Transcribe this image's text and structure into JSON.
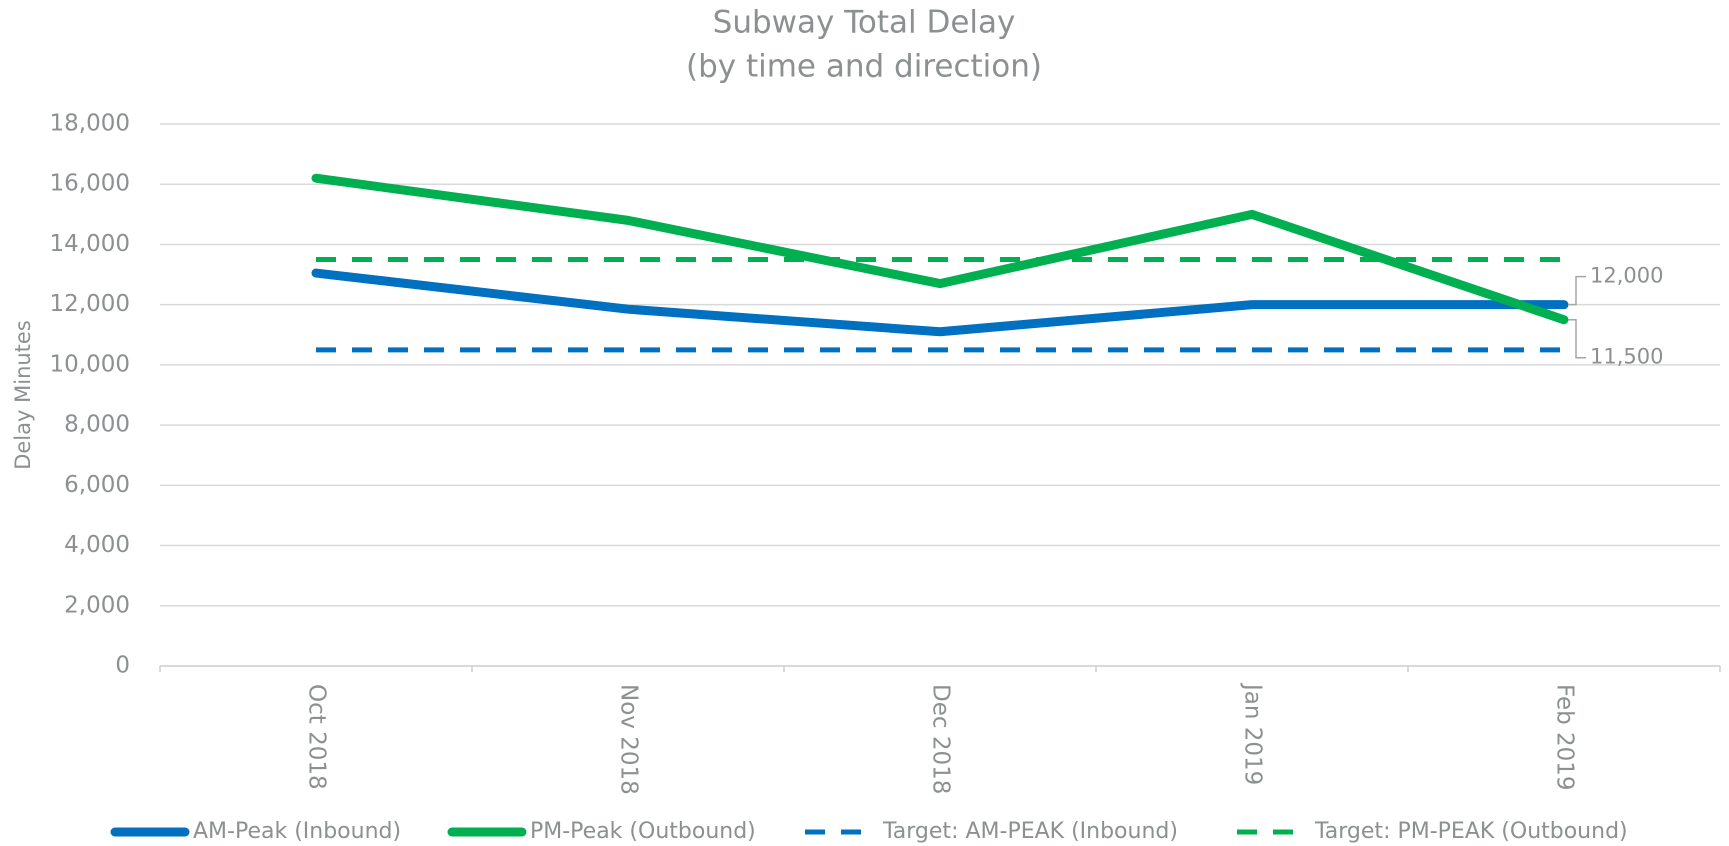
{
  "chart_data": {
    "type": "line",
    "title": "Subway Total Delay",
    "subtitle": "(by time and direction)",
    "y_label": "Delay Minutes",
    "categories": [
      "Oct 2018",
      "Nov 2018",
      "Dec 2018",
      "Jan 2019",
      "Feb 2019"
    ],
    "series": [
      {
        "name": "AM-Peak (Inbound)",
        "color": "#0070c0",
        "dashed": false,
        "values": [
          13050,
          11850,
          11100,
          12000,
          12000
        ],
        "value_labels": [
          null,
          null,
          null,
          null,
          "12,000"
        ]
      },
      {
        "name": "PM-Peak (Outbound)",
        "color": "#00b050",
        "dashed": false,
        "values": [
          16200,
          14800,
          12700,
          15000,
          11500
        ],
        "value_labels": [
          null,
          null,
          null,
          null,
          "11,500"
        ]
      },
      {
        "name": "Target: AM-PEAK (Inbound)",
        "color": "#0070c0",
        "dashed": true,
        "values": [
          10500,
          10500,
          10500,
          10500,
          10500
        ]
      },
      {
        "name": "Target: PM-PEAK (Outbound)",
        "color": "#00b050",
        "dashed": true,
        "values": [
          13500,
          13500,
          13500,
          13500,
          13500
        ]
      }
    ],
    "ylim": [
      0,
      18000
    ],
    "yticks": [
      0,
      {
        "value": 2000,
        "label": "2,000"
      },
      {
        "value": 4000,
        "label": "4,000"
      },
      {
        "value": 6000,
        "label": "6,000"
      },
      {
        "value": 8000,
        "label": "8,000"
      },
      {
        "value": 10000,
        "label": "10,000"
      },
      {
        "value": 12000,
        "label": "12,000"
      },
      {
        "value": 14000,
        "label": "14,000"
      },
      {
        "value": 16000,
        "label": "16,000"
      },
      {
        "value": 18000,
        "label": "18,000"
      }
    ],
    "grid": true,
    "legend": "bottom"
  }
}
